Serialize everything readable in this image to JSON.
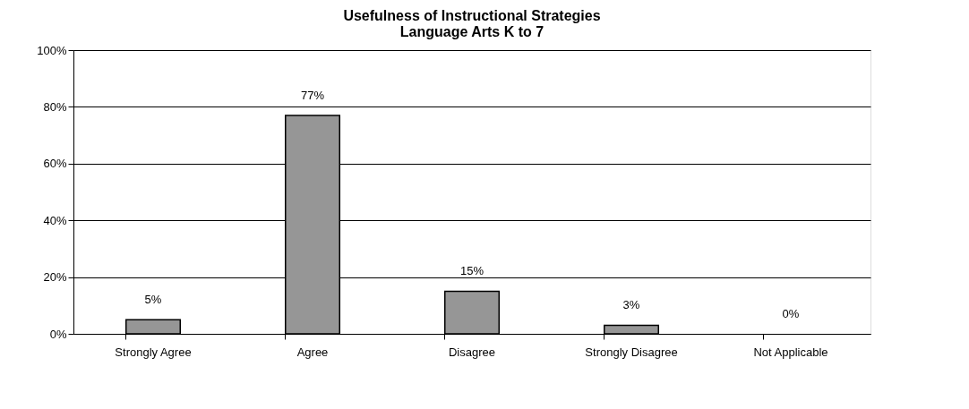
{
  "chart_data": {
    "type": "bar",
    "title": "Usefulness of Instructional Strategies\nLanguage Arts K to 7",
    "categories": [
      "Strongly Agree",
      "Agree",
      "Disagree",
      "Strongly Disagree",
      "Not Applicable"
    ],
    "values": [
      5,
      77,
      15,
      3,
      0
    ],
    "value_labels": [
      "5%",
      "77%",
      "15%",
      "3%",
      "0%"
    ],
    "color": "#969696",
    "ylim": [
      0,
      100
    ],
    "yticks": [
      {
        "value": 0,
        "label": "0%"
      },
      {
        "value": 20,
        "label": "20%"
      },
      {
        "value": 40,
        "label": "40%"
      },
      {
        "value": 60,
        "label": "60%"
      },
      {
        "value": 80,
        "label": "80%"
      },
      {
        "value": 100,
        "label": "100%"
      }
    ],
    "grid": "y"
  }
}
